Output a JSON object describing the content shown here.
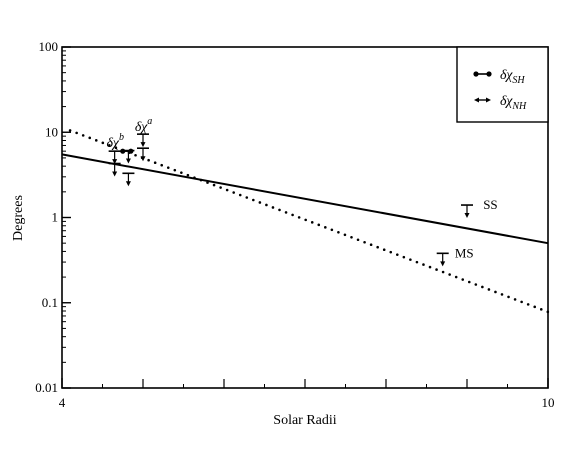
{
  "chart_data": {
    "type": "scatter",
    "title": "",
    "xlabel": "Solar Radii",
    "ylabel": "Degrees",
    "xlim": [
      4,
      10
    ],
    "ylim": [
      0.01,
      100
    ],
    "yscale": "log",
    "x_ticks": [
      4,
      10
    ],
    "x_tick_labels": [
      "4",
      "10"
    ],
    "y_ticks": [
      0.01,
      0.1,
      1,
      10,
      100
    ],
    "y_tick_labels": [
      "0.01",
      "0.1",
      "1",
      "10",
      "100"
    ],
    "grid": false,
    "legend": {
      "position": "top-right",
      "entries": [
        {
          "label": "δχ_SH",
          "main": "δχ",
          "sub": "SH",
          "marker": "circle"
        },
        {
          "label": "δχ_NH",
          "main": "δχ",
          "sub": "NH",
          "marker": "arrow"
        }
      ]
    },
    "series": [
      {
        "style": "solid",
        "x": [
          4,
          10
        ],
        "y": [
          5.5,
          0.5
        ]
      },
      {
        "style": "dotted",
        "x": [
          4.1,
          10
        ],
        "y": [
          10.5,
          0.078
        ]
      },
      {
        "style": "dumbbell",
        "x_start": [
          4.75
        ],
        "x_end": [
          4.85
        ],
        "y": [
          6.0
        ]
      },
      {
        "style": "upper-limit",
        "x": [
          4.65,
          4.65,
          4.82,
          4.82,
          5.0,
          5.0,
          9.0,
          8.7
        ],
        "y": [
          6.0,
          4.3,
          6.1,
          3.3,
          9.5,
          6.5,
          1.4,
          0.38
        ]
      }
    ],
    "annotations": [
      {
        "text": "SS",
        "x": 9.2,
        "y": 1.4
      },
      {
        "text": "MS",
        "x": 8.85,
        "y": 0.38
      },
      {
        "text": "δχ",
        "sup": "b",
        "x": 4.55,
        "y": 7.5
      },
      {
        "text": "δχ",
        "sup": "a",
        "x": 4.9,
        "y": 11.5
      }
    ]
  }
}
